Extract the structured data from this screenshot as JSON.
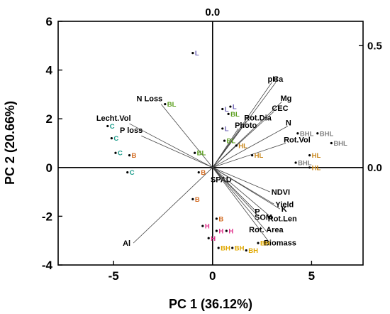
{
  "chart_data": {
    "type": "scatter",
    "subtype": "pca-biplot",
    "xlabel": "PC 1 (36.12%)",
    "ylabel": "PC 2 (20.66%)",
    "xlim": [
      -7.8,
      7.6
    ],
    "ylim": [
      -4,
      6
    ],
    "xticks": [
      -5,
      0,
      5
    ],
    "yticks": [
      -4,
      -2,
      0,
      2,
      4,
      6
    ],
    "top_axis": {
      "ticks": [
        0.0
      ],
      "labels": [
        "0.0"
      ]
    },
    "right_axis": {
      "ticks": [
        0.0,
        0.5
      ],
      "labels": [
        "0.0",
        "0.5"
      ]
    },
    "grid": false,
    "reference_lines": {
      "x": 0,
      "y": 0
    },
    "loadings": [
      {
        "name": "N Loss",
        "x": -2.6,
        "y": 2.6
      },
      {
        "name": "Lecht.Vol",
        "x": -4.2,
        "y": 1.8
      },
      {
        "name": "P loss",
        "x": -3.6,
        "y": 1.3
      },
      {
        "name": "Al",
        "x": -4.0,
        "y": -3.1
      },
      {
        "name": "pH",
        "x": 3.0,
        "y": 3.5
      },
      {
        "name": "Ca",
        "x": 3.2,
        "y": 3.5
      },
      {
        "name": "Mg",
        "x": 3.5,
        "y": 2.7
      },
      {
        "name": "Rot.Dia",
        "x": 1.7,
        "y": 1.9
      },
      {
        "name": "CEC",
        "x": 3.1,
        "y": 2.3
      },
      {
        "name": "Photo",
        "x": 1.3,
        "y": 1.6
      },
      {
        "name": "N",
        "x": 3.8,
        "y": 1.7
      },
      {
        "name": "Rot.Vol",
        "x": 3.7,
        "y": 1.0
      },
      {
        "name": "SPAD",
        "x": 0.4,
        "y": -0.2
      },
      {
        "name": "NDVI",
        "x": 2.9,
        "y": -1.0
      },
      {
        "name": "Yield",
        "x": 3.1,
        "y": -1.5
      },
      {
        "name": "K",
        "x": 3.4,
        "y": -1.7
      },
      {
        "name": "P",
        "x": 2.2,
        "y": -1.8
      },
      {
        "name": "SOM",
        "x": 2.3,
        "y": -2.0
      },
      {
        "name": "Rot.Len",
        "x": 2.9,
        "y": -2.0
      },
      {
        "name": "Rot. Area",
        "x": 2.7,
        "y": -2.6
      },
      {
        "name": "Biomass",
        "x": 2.8,
        "y": -3.0
      }
    ],
    "observations": [
      {
        "label": "L",
        "group": "L",
        "x": -1.0,
        "y": 4.7
      },
      {
        "label": "L",
        "group": "L",
        "x": 0.9,
        "y": 2.5
      },
      {
        "label": "L",
        "group": "L",
        "x": 0.5,
        "y": 2.4
      },
      {
        "label": "L",
        "group": "L",
        "x": 0.5,
        "y": 1.6
      },
      {
        "label": "BL",
        "group": "BL",
        "x": -2.4,
        "y": 2.6
      },
      {
        "label": "BL",
        "group": "BL",
        "x": 0.8,
        "y": 2.2
      },
      {
        "label": "BL",
        "group": "BL",
        "x": 0.6,
        "y": 1.1
      },
      {
        "label": "BL",
        "group": "BL",
        "x": -0.9,
        "y": 0.6
      },
      {
        "label": "C",
        "group": "C",
        "x": -5.3,
        "y": 1.7
      },
      {
        "label": "C",
        "group": "C",
        "x": -5.1,
        "y": 1.2
      },
      {
        "label": "C",
        "group": "C",
        "x": -4.9,
        "y": 0.6
      },
      {
        "label": "C",
        "group": "C",
        "x": -4.3,
        "y": -0.2
      },
      {
        "label": "B",
        "group": "B",
        "x": -4.2,
        "y": 0.5
      },
      {
        "label": "B",
        "group": "B",
        "x": -0.7,
        "y": -0.2
      },
      {
        "label": "B",
        "group": "B",
        "x": -1.0,
        "y": -1.3
      },
      {
        "label": "B",
        "group": "B",
        "x": 0.2,
        "y": -2.1
      },
      {
        "label": "HL",
        "group": "HL",
        "x": 1.2,
        "y": 0.9
      },
      {
        "label": "HL",
        "group": "HL",
        "x": 2.0,
        "y": 0.5
      },
      {
        "label": "HL",
        "group": "HL",
        "x": 4.9,
        "y": 0.5
      },
      {
        "label": "HL",
        "group": "HL",
        "x": 4.9,
        "y": 0.0
      },
      {
        "label": "BHL",
        "group": "BHL",
        "x": 4.3,
        "y": 1.4
      },
      {
        "label": "BHL",
        "group": "BHL",
        "x": 5.3,
        "y": 1.4
      },
      {
        "label": "BHL",
        "group": "BHL",
        "x": 6.0,
        "y": 1.0
      },
      {
        "label": "BHL",
        "group": "BHL",
        "x": 4.2,
        "y": 0.2
      },
      {
        "label": "H",
        "group": "H",
        "x": -0.5,
        "y": -2.4
      },
      {
        "label": "H",
        "group": "H",
        "x": 0.2,
        "y": -2.6
      },
      {
        "label": "H",
        "group": "H",
        "x": 0.7,
        "y": -2.6
      },
      {
        "label": "H",
        "group": "H",
        "x": -0.2,
        "y": -2.9
      },
      {
        "label": "BH",
        "group": "BH",
        "x": 0.3,
        "y": -3.3
      },
      {
        "label": "BH",
        "group": "BH",
        "x": 1.0,
        "y": -3.3
      },
      {
        "label": "BH",
        "group": "BH",
        "x": 1.7,
        "y": -3.4
      },
      {
        "label": "BH",
        "group": "BH",
        "x": 2.3,
        "y": -3.1
      }
    ],
    "group_colors": {
      "L": "#6b5fb5",
      "BL": "#5a9e1c",
      "C": "#1a9b8a",
      "B": "#d2691e",
      "HL": "#c8861a",
      "BHL": "#7f7f7f",
      "H": "#e0308a",
      "BH": "#e0a800"
    }
  }
}
